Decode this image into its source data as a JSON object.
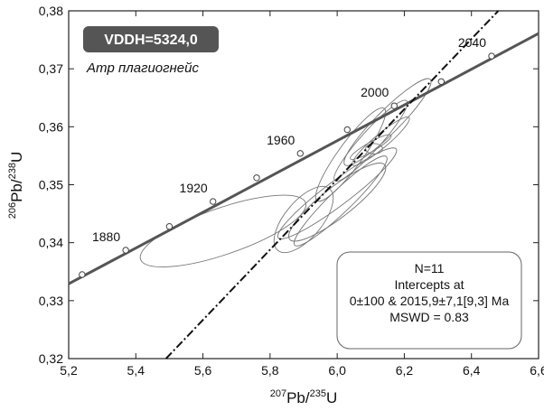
{
  "chart_data": {
    "type": "scatter",
    "title": "VDDH=5324,0",
    "subtitle": "Amp плагиогнейс",
    "xlabel": {
      "sup": "207",
      "base": "Pb/",
      "sup2": "235",
      "base2": "U"
    },
    "ylabel": {
      "sup": "206",
      "base": "Pb/",
      "sup2": "238",
      "base2": "U"
    },
    "xlim": [
      5.2,
      6.6
    ],
    "ylim": [
      0.32,
      0.38
    ],
    "x_ticks": [
      {
        "value": 5.2,
        "label": "5,2"
      },
      {
        "value": 5.4,
        "label": "5,4"
      },
      {
        "value": 5.6,
        "label": "5,6"
      },
      {
        "value": 5.8,
        "label": "5,8"
      },
      {
        "value": 6.0,
        "label": "6,0"
      },
      {
        "value": 6.2,
        "label": "6,2"
      },
      {
        "value": 6.4,
        "label": "6,4"
      },
      {
        "value": 6.6,
        "label": "6,6"
      }
    ],
    "y_ticks": [
      {
        "value": 0.32,
        "label": "0,32"
      },
      {
        "value": 0.33,
        "label": "0,33"
      },
      {
        "value": 0.34,
        "label": "0,34"
      },
      {
        "value": 0.35,
        "label": "0,35"
      },
      {
        "value": 0.36,
        "label": "0,36"
      },
      {
        "value": 0.37,
        "label": "0,37"
      },
      {
        "value": 0.38,
        "label": "0,38"
      }
    ],
    "concordia": {
      "line": [
        [
          5.2,
          0.3329
        ],
        [
          6.6,
          0.3761
        ]
      ],
      "age_points": [
        {
          "x": 5.24,
          "y": 0.3345
        },
        {
          "x": 5.37,
          "y": 0.3387,
          "label": "1880"
        },
        {
          "x": 5.5,
          "y": 0.3428
        },
        {
          "x": 5.63,
          "y": 0.3471,
          "label": "1920"
        },
        {
          "x": 5.76,
          "y": 0.3512
        },
        {
          "x": 5.89,
          "y": 0.3554,
          "label": "1960"
        },
        {
          "x": 6.03,
          "y": 0.3595
        },
        {
          "x": 6.17,
          "y": 0.3636,
          "label": "2000"
        },
        {
          "x": 6.31,
          "y": 0.3678
        },
        {
          "x": 6.46,
          "y": 0.3722,
          "label": "2040"
        }
      ]
    },
    "discordia": {
      "line": [
        [
          5.49,
          0.32
        ],
        [
          6.48,
          0.38
        ]
      ]
    },
    "ellipses": [
      {
        "cx": 5.66,
        "cy": 0.342,
        "rx": 0.26,
        "ry": 0.004,
        "angle": 19
      },
      {
        "cx": 6.0,
        "cy": 0.3485,
        "rx": 0.22,
        "ry": 0.0021,
        "angle": 37
      },
      {
        "cx": 6.01,
        "cy": 0.3472,
        "rx": 0.19,
        "ry": 0.0019,
        "angle": 44
      },
      {
        "cx": 6.04,
        "cy": 0.3552,
        "rx": 0.17,
        "ry": 0.0021,
        "angle": 54
      },
      {
        "cx": 6.1,
        "cy": 0.3576,
        "rx": 0.16,
        "ry": 0.0017,
        "angle": 48
      },
      {
        "cx": 6.15,
        "cy": 0.3608,
        "rx": 0.18,
        "ry": 0.002,
        "angle": 45
      },
      {
        "cx": 6.13,
        "cy": 0.3575,
        "rx": 0.11,
        "ry": 0.0012,
        "angle": 40
      },
      {
        "cx": 6.1,
        "cy": 0.3565,
        "rx": 0.07,
        "ry": 0.0008,
        "angle": 30
      },
      {
        "cx": 6.11,
        "cy": 0.3562,
        "rx": 0.025,
        "ry": 0.0009,
        "angle": 0
      },
      {
        "cx": 6.0,
        "cy": 0.347,
        "rx": 0.18,
        "ry": 0.0026,
        "angle": 38
      },
      {
        "cx": 5.9,
        "cy": 0.344,
        "rx": 0.12,
        "ry": 0.0032,
        "angle": 50
      }
    ],
    "result": {
      "n": "N=11",
      "line1": "Intercepts at",
      "line2": "0±100 & 2015,9±7,1[9,3] Ma",
      "mswd": "MSWD = 0.83"
    },
    "grid": false
  }
}
